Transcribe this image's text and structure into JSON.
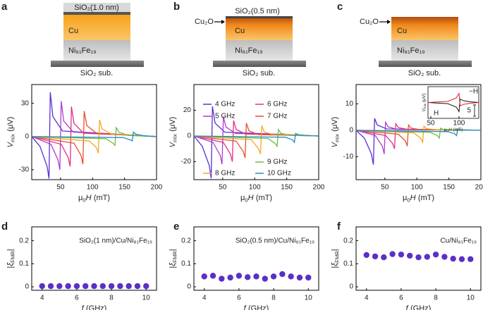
{
  "panel_labels": [
    "a",
    "b",
    "c",
    "d",
    "e",
    "f"
  ],
  "schematics": {
    "a": {
      "top": "SiO₂(1.0 nm)",
      "cu": "Cu",
      "nife": "Ni₈₁Fe₁₉",
      "sub": "SiO₂ sub."
    },
    "b": {
      "top": "SiO₂(0.5 nm)",
      "oxide": "Cu₂O",
      "cu": "Cu",
      "nife": "Ni₈₁Fe₁₉",
      "sub": "SiO₂ sub."
    },
    "c": {
      "oxide": "Cu₂O",
      "cu": "Cu",
      "nife": "Ni₈₁Fe₁₉",
      "sub": "SiO₂ sub."
    }
  },
  "chart_data": [
    {
      "type": "line",
      "xlim": [
        5,
        200
      ],
      "xticks": [
        50,
        100,
        150,
        200
      ],
      "ylim": [
        -39,
        47
      ],
      "yticks": [
        -30,
        0,
        30
      ],
      "x_label": [
        "μ",
        "0",
        "H",
        "(mT)"
      ],
      "y_label": [
        "V",
        "mix",
        "(μV)"
      ],
      "series": [
        {
          "color": "#5a2fd6",
          "x": [
            5,
            18,
            29,
            32,
            34,
            38,
            53,
            200
          ],
          "values": [
            0,
            -9,
            -27,
            -38,
            40,
            18,
            5,
            0
          ]
        },
        {
          "color": "#b03cd0",
          "x": [
            5,
            35,
            46,
            49,
            51,
            55,
            70,
            200
          ],
          "values": [
            0,
            -7,
            -21,
            -30,
            32,
            14,
            4,
            0
          ]
        },
        {
          "color": "#e0308a",
          "x": [
            5,
            51,
            62,
            65,
            67,
            71,
            86,
            200
          ],
          "values": [
            0,
            -7,
            -19,
            -27,
            27,
            12,
            3,
            0
          ]
        },
        {
          "color": "#e8502a",
          "x": [
            5,
            71,
            82,
            85,
            87,
            91,
            106,
            200
          ],
          "values": [
            0,
            -6,
            -17,
            -25,
            23,
            10,
            3,
            0
          ]
        },
        {
          "color": "#f5a623",
          "x": [
            5,
            95,
            106,
            109,
            111,
            115,
            130,
            200
          ],
          "values": [
            0,
            -4,
            -10,
            -15,
            15,
            7,
            2,
            0
          ]
        },
        {
          "color": "#6cbf3a",
          "x": [
            5,
            121,
            132,
            135,
            137,
            141,
            156,
            200
          ],
          "values": [
            0,
            -2,
            -6,
            -8,
            8,
            4,
            1,
            0
          ]
        },
        {
          "color": "#1f8ccc",
          "x": [
            5,
            148,
            159,
            162,
            164,
            168,
            183,
            200
          ],
          "values": [
            0,
            -1,
            -3,
            -4,
            4,
            2,
            0.5,
            0
          ]
        }
      ]
    },
    {
      "type": "line",
      "xlim": [
        5,
        200
      ],
      "xticks": [
        50,
        100,
        150,
        200
      ],
      "ylim": [
        -34,
        40
      ],
      "yticks": [
        -20,
        0,
        20
      ],
      "x_label": [
        "μ",
        "0",
        "H",
        "(mT)"
      ],
      "y_label": [
        "V",
        "mix",
        "(μV)"
      ],
      "series": [
        {
          "name": "4 GHz",
          "color": "#5a2fd6",
          "x": [
            5,
            18,
            29,
            32,
            34,
            38,
            53,
            200
          ],
          "values": [
            0,
            -8,
            -23,
            -33,
            23,
            10,
            3,
            0
          ]
        },
        {
          "name": "5 GHz",
          "color": "#b03cd0",
          "x": [
            5,
            35,
            46,
            49,
            51,
            55,
            70,
            200
          ],
          "values": [
            0,
            -5,
            -15,
            -22,
            15,
            7,
            2,
            0
          ]
        },
        {
          "name": "6 GHz",
          "color": "#e0308a",
          "x": [
            5,
            51,
            62,
            65,
            67,
            71,
            86,
            200
          ],
          "values": [
            0,
            -5,
            -14,
            -20,
            12,
            5,
            1.5,
            0
          ]
        },
        {
          "name": "7 GHz",
          "color": "#e8502a",
          "x": [
            5,
            71,
            82,
            85,
            87,
            91,
            106,
            200
          ],
          "values": [
            0,
            -4,
            -12,
            -17,
            10,
            4,
            1,
            0
          ]
        },
        {
          "name": "8 GHz",
          "color": "#f5a623",
          "x": [
            5,
            95,
            106,
            109,
            111,
            115,
            130,
            200
          ],
          "values": [
            0,
            -3,
            -10,
            -14,
            8,
            3,
            1,
            0
          ]
        },
        {
          "name": "9 GHz",
          "color": "#6cbf3a",
          "x": [
            5,
            121,
            132,
            135,
            137,
            141,
            156,
            200
          ],
          "values": [
            0,
            -2,
            -6,
            -8,
            5,
            2,
            0.5,
            0
          ]
        },
        {
          "name": "10 GHz",
          "color": "#1f8ccc",
          "x": [
            5,
            148,
            159,
            162,
            164,
            168,
            183,
            200
          ],
          "values": [
            0,
            -1,
            -3,
            -5,
            2,
            1,
            0.3,
            0
          ]
        }
      ]
    },
    {
      "type": "line",
      "xlim": [
        5,
        200
      ],
      "xticks": [
        50,
        100,
        150,
        200
      ],
      "ylim": [
        -18.7,
        17.3
      ],
      "yticks": [
        -10,
        0,
        10
      ],
      "x_label": [
        "μ",
        "0",
        "H",
        "(mT)"
      ],
      "y_label": [
        "V",
        "mix",
        "(μV)"
      ],
      "series": [
        {
          "color": "#5a2fd6",
          "x": [
            5,
            18,
            29,
            32,
            34,
            38,
            53,
            200
          ],
          "values": [
            0,
            -3,
            -9,
            -13,
            4.5,
            2,
            0.5,
            0
          ]
        },
        {
          "color": "#b03cd0",
          "x": [
            5,
            35,
            46,
            49,
            51,
            55,
            70,
            200
          ],
          "values": [
            0,
            -2,
            -6,
            -9,
            3,
            1.3,
            0.3,
            0
          ]
        },
        {
          "color": "#e0308a",
          "x": [
            5,
            51,
            62,
            65,
            67,
            71,
            86,
            200
          ],
          "values": [
            0,
            -2,
            -5,
            -7,
            2.5,
            1,
            0.3,
            0
          ]
        },
        {
          "color": "#e8502a",
          "x": [
            5,
            71,
            82,
            85,
            87,
            91,
            106,
            200
          ],
          "values": [
            0,
            -1.5,
            -4,
            -6,
            2,
            0.8,
            0.2,
            0
          ]
        },
        {
          "color": "#f5a623",
          "x": [
            5,
            95,
            106,
            109,
            111,
            115,
            130,
            200
          ],
          "values": [
            0,
            -1,
            -3,
            -4.5,
            1.5,
            0.6,
            0.2,
            0
          ]
        },
        {
          "color": "#6cbf3a",
          "x": [
            5,
            121,
            132,
            135,
            137,
            141,
            156,
            200
          ],
          "values": [
            0,
            -0.8,
            -2,
            -3,
            0.8,
            0.3,
            0.1,
            0
          ]
        },
        {
          "color": "#1f8ccc",
          "x": [
            5,
            148,
            159,
            162,
            164,
            168,
            183,
            200
          ],
          "values": [
            0,
            -0.5,
            -1.3,
            -2,
            0.5,
            0.2,
            0.1,
            0
          ]
        }
      ]
    },
    {
      "type": "line",
      "xlim": [
        45,
        135
      ],
      "xticks": [
        50,
        100
      ],
      "ylim": [
        -7,
        7
      ],
      "scale_bar": 5,
      "x_label": [
        "μ",
        "0",
        "H",
        "(mT)"
      ],
      "y_label": [
        "V",
        "mix",
        "(μV)"
      ],
      "series": [
        {
          "name": "H",
          "color": "#111111",
          "x": [
            45,
            80,
            95,
            100,
            102,
            108,
            120,
            135
          ],
          "values": [
            0,
            -0.5,
            -2,
            -4,
            1.5,
            0.8,
            0.3,
            0
          ]
        },
        {
          "name": "−H",
          "color": "#d62020",
          "x": [
            45,
            80,
            95,
            100,
            102,
            108,
            120,
            135
          ],
          "values": [
            0,
            0.5,
            2,
            4,
            -1.5,
            -0.8,
            -0.3,
            0
          ]
        }
      ]
    },
    {
      "type": "scatter",
      "annotation": "SiO₂(1 nm)/Cu/Ni₈₁Fe₁₉",
      "color": "#5b2fc8",
      "x": [
        4,
        4.5,
        5,
        5.5,
        6,
        6.5,
        7,
        7.5,
        8,
        8.5,
        9,
        9.5,
        10
      ],
      "values": [
        0.003,
        0.003,
        0.003,
        0.003,
        0.003,
        0.003,
        0.003,
        0.003,
        0.003,
        0.003,
        0.003,
        0.003,
        0.003
      ],
      "xlim": [
        3.4,
        10.6
      ],
      "xticks": [
        4,
        6,
        8,
        10
      ],
      "ylim": [
        -0.015,
        0.26
      ],
      "yticks": [
        0,
        0.1,
        0.2
      ],
      "x_label": [
        "f",
        "(GHz)"
      ],
      "y_label": [
        "|",
        "ξ",
        "FMR",
        "|"
      ]
    },
    {
      "type": "scatter",
      "annotation": "SiO₂(0.5 nm)/Cu/Ni₈₁Fe₁₉",
      "color": "#5b2fc8",
      "x": [
        4,
        4.5,
        5,
        5.5,
        6,
        6.5,
        7,
        7.5,
        8,
        8.5,
        9,
        9.5,
        10
      ],
      "values": [
        0.045,
        0.048,
        0.035,
        0.04,
        0.048,
        0.042,
        0.045,
        0.035,
        0.045,
        0.055,
        0.045,
        0.04,
        0.04
      ],
      "xlim": [
        3.4,
        10.6
      ],
      "xticks": [
        4,
        6,
        8,
        10
      ],
      "ylim": [
        -0.015,
        0.26
      ],
      "yticks": [
        0,
        0.1,
        0.2
      ],
      "x_label": [
        "f",
        "(GHz)"
      ],
      "y_label": [
        "|",
        "ξ",
        "FMR",
        "|"
      ]
    },
    {
      "type": "scatter",
      "annotation": "Cu/Ni₈₁Fe₁₉",
      "color": "#5b2fc8",
      "x": [
        4,
        4.5,
        5,
        5.5,
        6,
        6.5,
        7,
        7.5,
        8,
        8.5,
        9,
        9.5,
        10
      ],
      "values": [
        0.138,
        0.132,
        0.128,
        0.142,
        0.14,
        0.135,
        0.128,
        0.13,
        0.14,
        0.13,
        0.122,
        0.12,
        0.12
      ],
      "xlim": [
        3.4,
        10.6
      ],
      "xticks": [
        4,
        6,
        8,
        10
      ],
      "ylim": [
        -0.015,
        0.26
      ],
      "yticks": [
        0,
        0.1,
        0.2
      ],
      "x_label": [
        "f",
        "(GHz)"
      ],
      "y_label": [
        "|",
        "ξ",
        "FMR",
        "|"
      ]
    }
  ]
}
